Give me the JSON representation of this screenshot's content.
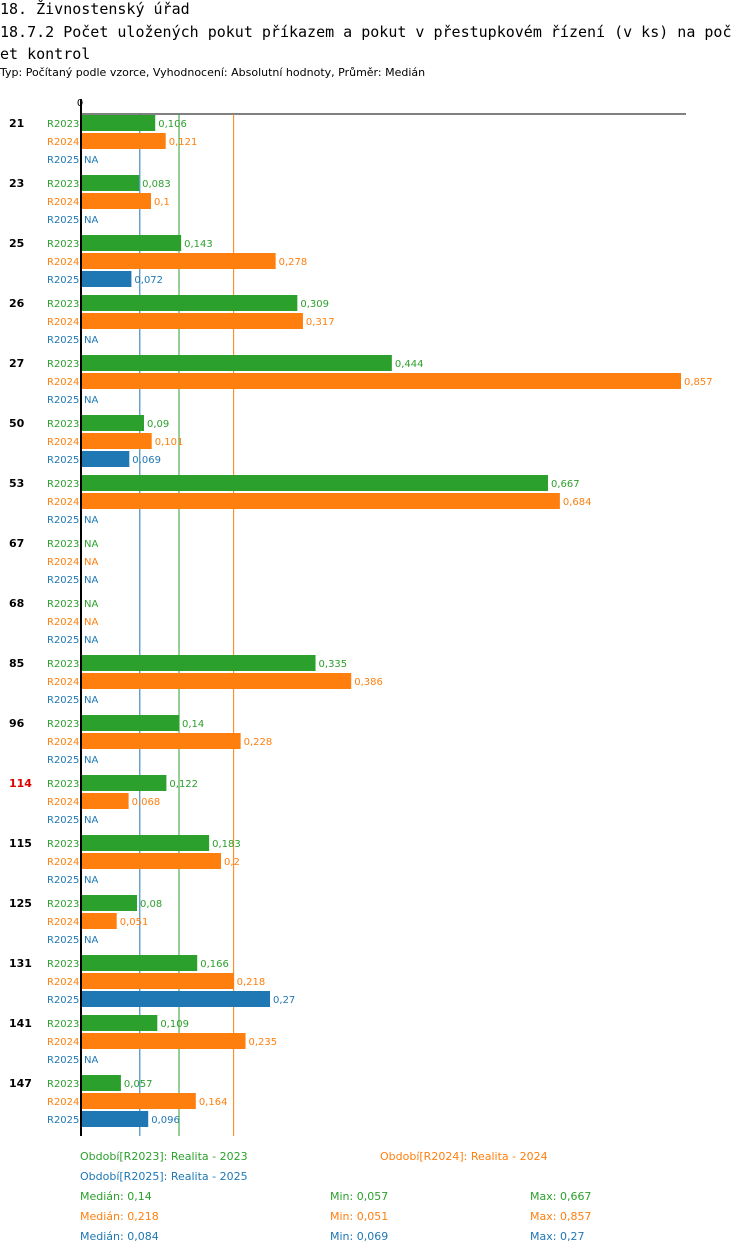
{
  "header": {
    "title1": "18. Živnostenský úřad",
    "title2": "18.7.2 Počet uložených pokut příkazem a pokut v přestupkovém řízení (v ks) na počet kontrol",
    "subtitle": "Typ: Počítaný podle vzorce, Vyhodnocení: Absolutní hodnoty, Průměr: Medián"
  },
  "colors": {
    "R2023": "#2ca02c",
    "R2024": "#ff7f0e",
    "R2025": "#1f77b4",
    "highlight": "#dd0000"
  },
  "chart_data": {
    "type": "bar",
    "orientation": "horizontal",
    "xlim": [
      0,
      0.857
    ],
    "axis_zero_label": "0",
    "na_label": "NA",
    "series_names": [
      "R2023",
      "R2024",
      "R2025"
    ],
    "highlighted_category": "114",
    "categories": [
      "21",
      "23",
      "25",
      "26",
      "27",
      "50",
      "53",
      "67",
      "68",
      "85",
      "96",
      "114",
      "115",
      "125",
      "131",
      "141",
      "147"
    ],
    "series": [
      {
        "name": "R2023",
        "values": [
          0.106,
          0.083,
          0.143,
          0.309,
          0.444,
          0.09,
          0.667,
          null,
          null,
          0.335,
          0.14,
          0.122,
          0.183,
          0.08,
          0.166,
          0.109,
          0.057
        ],
        "labels": [
          "0,106",
          "0,083",
          "0,143",
          "0,309",
          "0,444",
          "0,09",
          "0,667",
          "NA",
          "NA",
          "0,335",
          "0,14",
          "0,122",
          "0,183",
          "0,08",
          "0,166",
          "0,109",
          "0,057"
        ]
      },
      {
        "name": "R2024",
        "values": [
          0.121,
          0.1,
          0.278,
          0.317,
          0.857,
          0.101,
          0.684,
          null,
          null,
          0.386,
          0.228,
          0.068,
          0.2,
          0.051,
          0.218,
          0.235,
          0.164
        ],
        "labels": [
          "0,121",
          "0,1",
          "0,278",
          "0,317",
          "0,857",
          "0,101",
          "0,684",
          "NA",
          "NA",
          "0,386",
          "0,228",
          "0,068",
          "0,2",
          "0,051",
          "0,218",
          "0,235",
          "0,164"
        ]
      },
      {
        "name": "R2025",
        "values": [
          null,
          null,
          0.072,
          null,
          null,
          0.069,
          null,
          null,
          null,
          null,
          null,
          null,
          null,
          null,
          0.27,
          null,
          0.096
        ],
        "labels": [
          "NA",
          "NA",
          "0,072",
          "NA",
          "NA",
          "0,069",
          "NA",
          "NA",
          "NA",
          "NA",
          "NA",
          "NA",
          "NA",
          "NA",
          "0,27",
          "NA",
          "0,096"
        ]
      }
    ],
    "reference_lines": [
      {
        "series": "R2023",
        "value": 0.14
      },
      {
        "series": "R2024",
        "value": 0.218
      },
      {
        "series": "R2025",
        "value": 0.084
      }
    ]
  },
  "legend": {
    "periods": [
      {
        "series": "R2023",
        "text": "Období[R2023]: Realita - 2023"
      },
      {
        "series": "R2024",
        "text": "Období[R2024]: Realita - 2024"
      },
      {
        "series": "R2025",
        "text": "Období[R2025]: Realita - 2025"
      }
    ],
    "stats": [
      {
        "series": "R2023",
        "median": "Medián: 0,14",
        "min": "Min: 0,057",
        "max": "Max: 0,667"
      },
      {
        "series": "R2024",
        "median": "Medián: 0,218",
        "min": "Min: 0,051",
        "max": "Max: 0,857"
      },
      {
        "series": "R2025",
        "median": "Medián: 0,084",
        "min": "Min: 0,069",
        "max": "Max: 0,27"
      }
    ]
  }
}
